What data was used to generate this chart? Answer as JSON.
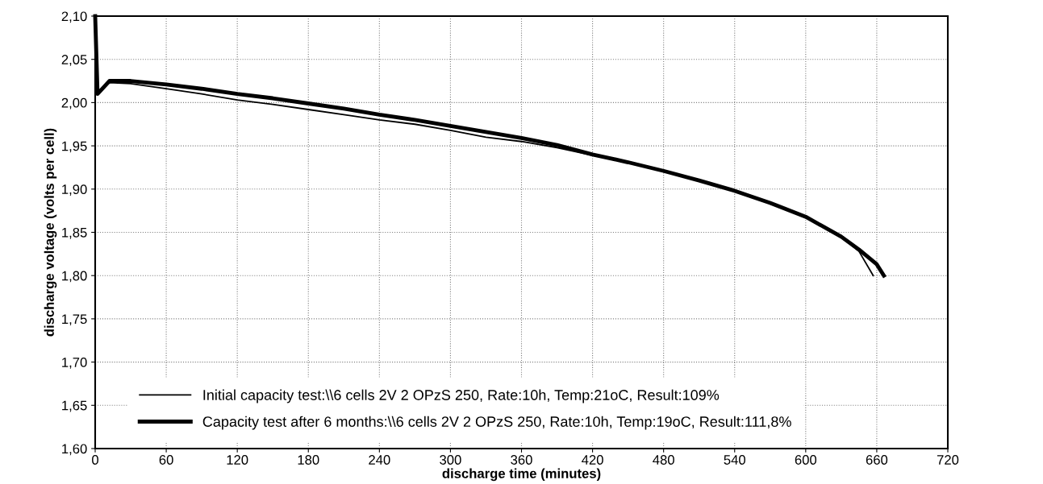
{
  "chart_data": {
    "type": "line",
    "xlabel": "discharge time (minutes)",
    "ylabel": "discharge voltage (volts per cell)",
    "xlim": [
      0,
      720
    ],
    "xticks": [
      0,
      60,
      120,
      180,
      240,
      300,
      360,
      420,
      480,
      540,
      600,
      660,
      720
    ],
    "ylim": [
      1.6,
      2.1
    ],
    "yticks": [
      {
        "value": 1.6,
        "label": "1,60"
      },
      {
        "value": 1.65,
        "label": "1,65"
      },
      {
        "value": 1.7,
        "label": "1,70"
      },
      {
        "value": 1.75,
        "label": "1,75"
      },
      {
        "value": 1.8,
        "label": "1,80"
      },
      {
        "value": 1.85,
        "label": "1,85"
      },
      {
        "value": 1.9,
        "label": "1,90"
      },
      {
        "value": 1.95,
        "label": "1,95"
      },
      {
        "value": 2.0,
        "label": "2,00"
      },
      {
        "value": 2.05,
        "label": "2,05"
      },
      {
        "value": 2.1,
        "label": "2,10"
      }
    ],
    "grid": true,
    "legend": "bottom left",
    "marker": "none",
    "line_style": "solid",
    "series": [
      {
        "name": "Initial capacity test:\\\\6 cells 2V 2 OPzS 250, Rate:10h, Temp:21oC, Result:109%",
        "color": "#000000",
        "x": [
          0,
          2,
          12,
          30,
          60,
          90,
          120,
          150,
          180,
          210,
          240,
          270,
          300,
          330,
          360,
          390,
          420,
          450,
          480,
          510,
          540,
          570,
          600,
          630,
          645,
          657
        ],
        "values": [
          2.1,
          2.01,
          2.023,
          2.022,
          2.016,
          2.01,
          2.003,
          1.998,
          1.992,
          1.986,
          1.98,
          1.975,
          1.968,
          1.96,
          1.955,
          1.948,
          1.939,
          1.931,
          1.921,
          1.91,
          1.898,
          1.884,
          1.868,
          1.845,
          1.828,
          1.8
        ]
      },
      {
        "name": "Capacity test after 6 months:\\\\6 cells 2V 2 OPzS 250, Rate:10h, Temp:19oC, Result:111,8%",
        "color": "#000000",
        "x": [
          0,
          2,
          12,
          30,
          60,
          90,
          120,
          150,
          180,
          210,
          240,
          270,
          300,
          330,
          360,
          390,
          420,
          450,
          480,
          510,
          540,
          570,
          600,
          630,
          645,
          660,
          666
        ],
        "values": [
          2.1,
          2.01,
          2.025,
          2.025,
          2.021,
          2.016,
          2.01,
          2.005,
          1.999,
          1.993,
          1.986,
          1.98,
          1.973,
          1.966,
          1.959,
          1.951,
          1.94,
          1.931,
          1.921,
          1.91,
          1.898,
          1.884,
          1.868,
          1.845,
          1.83,
          1.813,
          1.8
        ]
      }
    ]
  }
}
